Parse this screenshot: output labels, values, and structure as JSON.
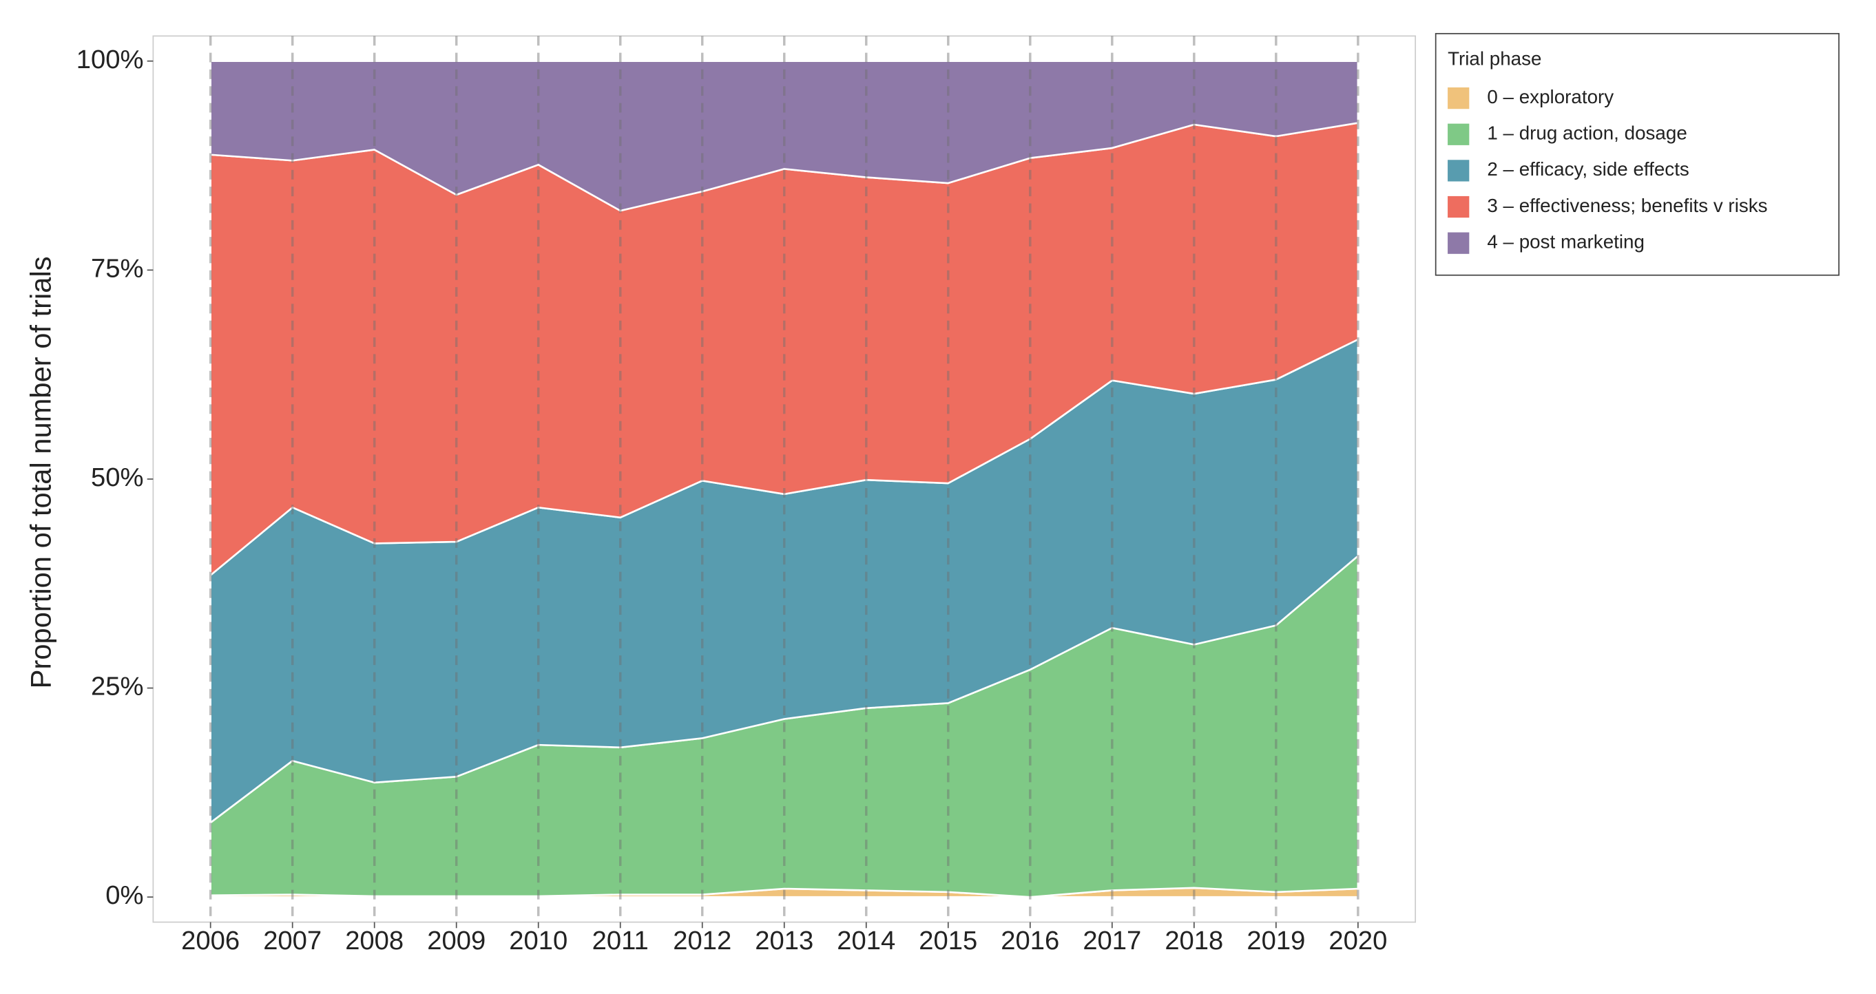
{
  "chart_data": {
    "type": "stacked_area",
    "y_label": "Proportion of total number of trials",
    "legend_title": "Trial phase",
    "legend_position": "right",
    "x": [
      2006,
      2007,
      2008,
      2009,
      2010,
      2011,
      2012,
      2013,
      2014,
      2015,
      2016,
      2017,
      2018,
      2019,
      2020
    ],
    "xlim": [
      2005.3,
      2020.7
    ],
    "xticks": [
      2006,
      2007,
      2008,
      2009,
      2010,
      2011,
      2012,
      2013,
      2014,
      2015,
      2016,
      2017,
      2018,
      2019,
      2020
    ],
    "ylim": [
      -3,
      103
    ],
    "yticks": [
      {
        "value": 0,
        "label": "0%"
      },
      {
        "value": 25,
        "label": "25%"
      },
      {
        "value": 50,
        "label": "50%"
      },
      {
        "value": 75,
        "label": "75%"
      },
      {
        "value": 100,
        "label": "100%"
      }
    ],
    "x_grid": true,
    "series": [
      {
        "name": "0 – exploratory",
        "color": "#f0c27b",
        "values": [
          0.2,
          0.3,
          0.1,
          0.1,
          0.1,
          0.3,
          0.3,
          1.0,
          0.8,
          0.6,
          0.0,
          0.8,
          1.1,
          0.6,
          1.0
        ]
      },
      {
        "name": "1 – drug action, dosage",
        "color": "#7fc986",
        "values": [
          8.7,
          16.0,
          13.6,
          14.3,
          18.1,
          17.6,
          18.7,
          20.3,
          21.8,
          22.6,
          27.2,
          31.4,
          29.1,
          31.9,
          39.8
        ]
      },
      {
        "name": "2 – efficacy, side effects",
        "color": "#589caf",
        "values": [
          29.6,
          30.3,
          28.6,
          28.1,
          28.4,
          27.5,
          30.8,
          26.9,
          27.3,
          26.3,
          27.6,
          29.6,
          30.0,
          29.4,
          25.9
        ]
      },
      {
        "name": "3 – effectiveness; benefits v risks",
        "color": "#ee6d5f",
        "values": [
          50.3,
          41.5,
          47.1,
          41.5,
          41.0,
          36.7,
          34.6,
          38.9,
          36.2,
          35.9,
          33.6,
          27.8,
          32.2,
          29.1,
          25.9
        ]
      },
      {
        "name": "4 – post marketing",
        "color": "#8e79a8",
        "values": [
          11.2,
          11.9,
          10.6,
          16.0,
          12.4,
          17.9,
          15.6,
          12.9,
          13.9,
          14.6,
          11.6,
          10.4,
          7.6,
          9.0,
          7.4
        ]
      }
    ]
  }
}
